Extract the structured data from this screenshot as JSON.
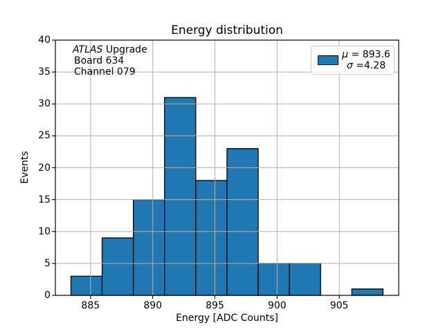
{
  "figure": {
    "title": "Energy distribution",
    "xlabel": "Energy [ADC Counts]",
    "ylabel": "Events",
    "annotation": {
      "line1_italic": "ATLAS",
      "line1_rest": " Upgrade",
      "line2": "Board 634",
      "line3": "Channel 079"
    },
    "legend": {
      "mu_symbol": "μ",
      "mu_rest": " = 893.6",
      "sigma_symbol": "σ",
      "sigma_rest": " =4.28",
      "swatch_color": "#1f77b4"
    }
  },
  "chart_data": {
    "type": "bar",
    "subtype": "histogram",
    "title": "Energy distribution",
    "xlabel": "Energy [ADC Counts]",
    "ylabel": "Events",
    "bin_edges": [
      883.42,
      885.93,
      888.44,
      890.95,
      893.46,
      895.97,
      898.48,
      900.99,
      903.5,
      906.01,
      908.52
    ],
    "counts": [
      3,
      9,
      15,
      31,
      18,
      23,
      5,
      5,
      0,
      1
    ],
    "stats": {
      "mu": 893.6,
      "sigma": 4.28,
      "entries": 110
    },
    "legend_lines": [
      "μ = 893.6",
      "σ =4.28"
    ],
    "xlim": [
      882.17,
      909.78
    ],
    "ylim": [
      0,
      40
    ],
    "xticks": [
      885,
      890,
      895,
      900,
      905
    ],
    "yticks": [
      0,
      5,
      10,
      15,
      20,
      25,
      30,
      35,
      40
    ],
    "grid": true,
    "grid_over_bars": true,
    "grid_color": "#b0b0b0",
    "bar_color": "#1f77b4",
    "bar_edge_color": "#000000",
    "legend_position": "upper right",
    "annotation_lines": [
      "ATLAS Upgrade",
      "Board 634",
      "Channel 079"
    ]
  }
}
